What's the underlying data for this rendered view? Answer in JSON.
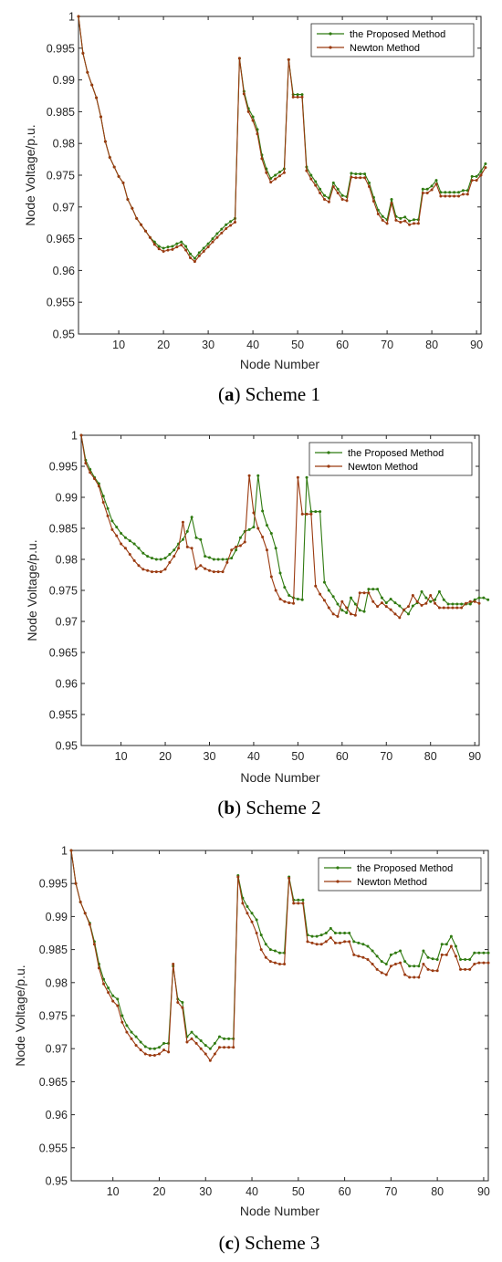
{
  "colors": {
    "proposed": "#2f7a10",
    "newton": "#9a3a10",
    "axis": "#262626",
    "background": "#ffffff"
  },
  "charts": [
    {
      "caption": {
        "letter": "a",
        "text": " Scheme 1"
      }
    },
    {
      "caption": {
        "letter": "b",
        "text": " Scheme 2"
      }
    },
    {
      "caption": {
        "letter": "c",
        "text": " Scheme 3"
      }
    }
  ],
  "chart_data": [
    {
      "type": "line",
      "xlabel": "Node Number",
      "ylabel": "Node Voltage/p.u.",
      "xlim": [
        1,
        91
      ],
      "ylim": [
        0.95,
        1
      ],
      "xticks": [
        "10",
        "20",
        "30",
        "40",
        "50",
        "60",
        "70",
        "80",
        "90"
      ],
      "yticks": [
        "0.95",
        "0.955",
        "0.96",
        "0.965",
        "0.97",
        "0.975",
        "0.98",
        "0.985",
        "0.99",
        "0.995",
        "1"
      ],
      "legend_position": "top-right",
      "series": [
        {
          "name": "the Proposed Method",
          "values": [
            1,
            0.9942,
            0.9912,
            0.9892,
            0.9872,
            0.9842,
            0.9803,
            0.9778,
            0.9763,
            0.9748,
            0.9738,
            0.9712,
            0.9698,
            0.9682,
            0.9672,
            0.9662,
            0.9652,
            0.9645,
            0.9638,
            0.9635,
            0.9637,
            0.9638,
            0.9642,
            0.9645,
            0.9638,
            0.9626,
            0.9619,
            0.9628,
            0.9635,
            0.9642,
            0.965,
            0.9658,
            0.9665,
            0.9672,
            0.9677,
            0.9682,
            0.9934,
            0.9882,
            0.9855,
            0.9842,
            0.9822,
            0.9782,
            0.976,
            0.9745,
            0.975,
            0.9755,
            0.976,
            0.9932,
            0.9877,
            0.9877,
            0.9877,
            0.9763,
            0.975,
            0.974,
            0.9728,
            0.9718,
            0.9714,
            0.9738,
            0.9728,
            0.9718,
            0.9716,
            0.9753,
            0.9752,
            0.9752,
            0.9752,
            0.9738,
            0.9715,
            0.9695,
            0.9685,
            0.968,
            0.9712,
            0.9685,
            0.9682,
            0.9684,
            0.9678,
            0.968,
            0.968,
            0.9728,
            0.9728,
            0.9733,
            0.9742,
            0.9723,
            0.9723,
            0.9723,
            0.9723,
            0.9723,
            0.9726,
            0.9726,
            0.9748,
            0.9748,
            0.9756,
            0.9768
          ]
        },
        {
          "name": "Newton Method",
          "values": [
            1,
            0.9942,
            0.9912,
            0.9892,
            0.9872,
            0.9842,
            0.9803,
            0.9778,
            0.9763,
            0.9748,
            0.9738,
            0.9712,
            0.9698,
            0.9682,
            0.9672,
            0.9662,
            0.9652,
            0.9641,
            0.9634,
            0.963,
            0.9632,
            0.9633,
            0.9637,
            0.964,
            0.9632,
            0.962,
            0.9614,
            0.9623,
            0.963,
            0.9637,
            0.9645,
            0.9652,
            0.9659,
            0.9666,
            0.9671,
            0.9676,
            0.9934,
            0.9878,
            0.985,
            0.9836,
            0.9815,
            0.9776,
            0.9754,
            0.9739,
            0.9744,
            0.9749,
            0.9754,
            0.9932,
            0.9873,
            0.9873,
            0.9873,
            0.9757,
            0.9744,
            0.9734,
            0.9722,
            0.9712,
            0.9708,
            0.9732,
            0.9722,
            0.9712,
            0.971,
            0.9747,
            0.9746,
            0.9746,
            0.9746,
            0.9732,
            0.9709,
            0.9689,
            0.9679,
            0.9674,
            0.9706,
            0.9679,
            0.9676,
            0.9678,
            0.9672,
            0.9674,
            0.9674,
            0.9722,
            0.9722,
            0.9727,
            0.9736,
            0.9717,
            0.9717,
            0.9717,
            0.9717,
            0.9717,
            0.972,
            0.972,
            0.9742,
            0.9742,
            0.975,
            0.9762
          ]
        }
      ]
    },
    {
      "type": "line",
      "xlabel": "Node Number",
      "ylabel": "Node Voltage/p.u.",
      "xlim": [
        1,
        91
      ],
      "ylim": [
        0.95,
        1
      ],
      "xticks": [
        "10",
        "20",
        "30",
        "40",
        "50",
        "60",
        "70",
        "80",
        "90"
      ],
      "yticks": [
        "0.95",
        "0.955",
        "0.96",
        "0.965",
        "0.97",
        "0.975",
        "0.98",
        "0.985",
        "0.99",
        "0.995",
        "1"
      ],
      "legend_position": "top-right",
      "series": [
        {
          "name": "the Proposed Method",
          "values": [
            1,
            0.996,
            0.9945,
            0.9932,
            0.9922,
            0.9902,
            0.9882,
            0.9862,
            0.9852,
            0.9842,
            0.9835,
            0.983,
            0.9825,
            0.9818,
            0.981,
            0.9805,
            0.9802,
            0.98,
            0.98,
            0.9802,
            0.9808,
            0.9815,
            0.9825,
            0.9832,
            0.9845,
            0.9868,
            0.9835,
            0.9832,
            0.9805,
            0.9803,
            0.98,
            0.98,
            0.98,
            0.98,
            0.9802,
            0.9815,
            0.9835,
            0.9845,
            0.9848,
            0.9852,
            0.9935,
            0.9878,
            0.9855,
            0.9842,
            0.9818,
            0.9778,
            0.9755,
            0.9742,
            0.9738,
            0.9736,
            0.9735,
            0.9932,
            0.9877,
            0.9877,
            0.9877,
            0.9763,
            0.975,
            0.974,
            0.9728,
            0.9718,
            0.9714,
            0.9738,
            0.9728,
            0.9718,
            0.9716,
            0.9752,
            0.9752,
            0.9752,
            0.9738,
            0.973,
            0.9736,
            0.973,
            0.9725,
            0.9718,
            0.9712,
            0.9725,
            0.973,
            0.9748,
            0.9738,
            0.9732,
            0.9735,
            0.9748,
            0.9735,
            0.9728,
            0.9728,
            0.9728,
            0.9728,
            0.9728,
            0.9728,
            0.9735,
            0.9738,
            0.9738,
            0.9735
          ]
        },
        {
          "name": "Newton Method",
          "values": [
            1,
            0.9955,
            0.994,
            0.993,
            0.9918,
            0.9892,
            0.987,
            0.9848,
            0.9838,
            0.9825,
            0.9818,
            0.9808,
            0.9798,
            0.979,
            0.9784,
            0.9782,
            0.978,
            0.978,
            0.978,
            0.9784,
            0.9795,
            0.9805,
            0.9818,
            0.986,
            0.982,
            0.9818,
            0.9785,
            0.979,
            0.9785,
            0.9782,
            0.978,
            0.978,
            0.978,
            0.9795,
            0.9815,
            0.982,
            0.9822,
            0.9828,
            0.9935,
            0.9875,
            0.985,
            0.9836,
            0.9815,
            0.9772,
            0.975,
            0.9736,
            0.9732,
            0.973,
            0.9729,
            0.9932,
            0.9873,
            0.9873,
            0.9873,
            0.9757,
            0.9744,
            0.9734,
            0.9722,
            0.9712,
            0.9708,
            0.9732,
            0.9722,
            0.9712,
            0.971,
            0.9746,
            0.9746,
            0.9746,
            0.9732,
            0.9724,
            0.973,
            0.9724,
            0.9719,
            0.9712,
            0.9706,
            0.9719,
            0.9724,
            0.9742,
            0.9732,
            0.9726,
            0.9729,
            0.9742,
            0.9729,
            0.9722,
            0.9722,
            0.9722,
            0.9722,
            0.9722,
            0.9722,
            0.9729,
            0.9732,
            0.9732,
            0.9729
          ]
        }
      ]
    },
    {
      "type": "line",
      "xlabel": "Node Number",
      "ylabel": "Node Voltage/p.u.",
      "xlim": [
        1,
        91
      ],
      "ylim": [
        0.95,
        1
      ],
      "xticks": [
        "10",
        "20",
        "30",
        "40",
        "50",
        "60",
        "70",
        "80",
        "90"
      ],
      "yticks": [
        "0.95",
        "0.955",
        "0.96",
        "0.965",
        "0.97",
        "0.975",
        "0.98",
        "0.985",
        "0.99",
        "0.995",
        "1"
      ],
      "legend_position": "top-right",
      "series": [
        {
          "name": "the Proposed Method",
          "values": [
            1,
            0.995,
            0.9922,
            0.9905,
            0.989,
            0.9862,
            0.9828,
            0.9805,
            0.9792,
            0.978,
            0.9775,
            0.975,
            0.9735,
            0.9725,
            0.9718,
            0.971,
            0.9703,
            0.97,
            0.97,
            0.9702,
            0.9708,
            0.9708,
            0.9825,
            0.9775,
            0.977,
            0.9718,
            0.9725,
            0.9718,
            0.9712,
            0.9705,
            0.97,
            0.9708,
            0.9718,
            0.9715,
            0.9715,
            0.9715,
            0.9962,
            0.9928,
            0.9915,
            0.9905,
            0.9895,
            0.9872,
            0.9858,
            0.985,
            0.9848,
            0.9845,
            0.9845,
            0.996,
            0.9925,
            0.9925,
            0.9925,
            0.9872,
            0.987,
            0.987,
            0.9872,
            0.9875,
            0.9882,
            0.9875,
            0.9875,
            0.9875,
            0.9875,
            0.9862,
            0.986,
            0.9858,
            0.9855,
            0.9848,
            0.984,
            0.9832,
            0.9828,
            0.9842,
            0.9845,
            0.9848,
            0.9832,
            0.9825,
            0.9825,
            0.9825,
            0.9848,
            0.9838,
            0.9836,
            0.9835,
            0.9858,
            0.9858,
            0.987,
            0.9855,
            0.9835,
            0.9835,
            0.9835,
            0.9845,
            0.9845,
            0.9845,
            0.9845
          ]
        },
        {
          "name": "Newton Method",
          "values": [
            1,
            0.995,
            0.9922,
            0.9905,
            0.9888,
            0.9858,
            0.9822,
            0.9798,
            0.9785,
            0.9772,
            0.9765,
            0.974,
            0.9725,
            0.9715,
            0.9705,
            0.9698,
            0.9692,
            0.969,
            0.969,
            0.9692,
            0.9698,
            0.9695,
            0.9828,
            0.977,
            0.9762,
            0.971,
            0.9715,
            0.9708,
            0.97,
            0.9692,
            0.9682,
            0.9692,
            0.9702,
            0.9702,
            0.9702,
            0.9702,
            0.996,
            0.992,
            0.9905,
            0.9892,
            0.9875,
            0.985,
            0.9838,
            0.9832,
            0.983,
            0.9828,
            0.9828,
            0.9958,
            0.992,
            0.992,
            0.992,
            0.9862,
            0.986,
            0.9858,
            0.9858,
            0.9862,
            0.9868,
            0.986,
            0.986,
            0.9862,
            0.9862,
            0.9842,
            0.984,
            0.9838,
            0.9835,
            0.9828,
            0.982,
            0.9815,
            0.9812,
            0.9825,
            0.9828,
            0.983,
            0.9812,
            0.9808,
            0.9808,
            0.9808,
            0.9828,
            0.982,
            0.9818,
            0.9818,
            0.9842,
            0.9842,
            0.9855,
            0.984,
            0.982,
            0.982,
            0.982,
            0.9828,
            0.983,
            0.983,
            0.983
          ]
        }
      ]
    }
  ]
}
